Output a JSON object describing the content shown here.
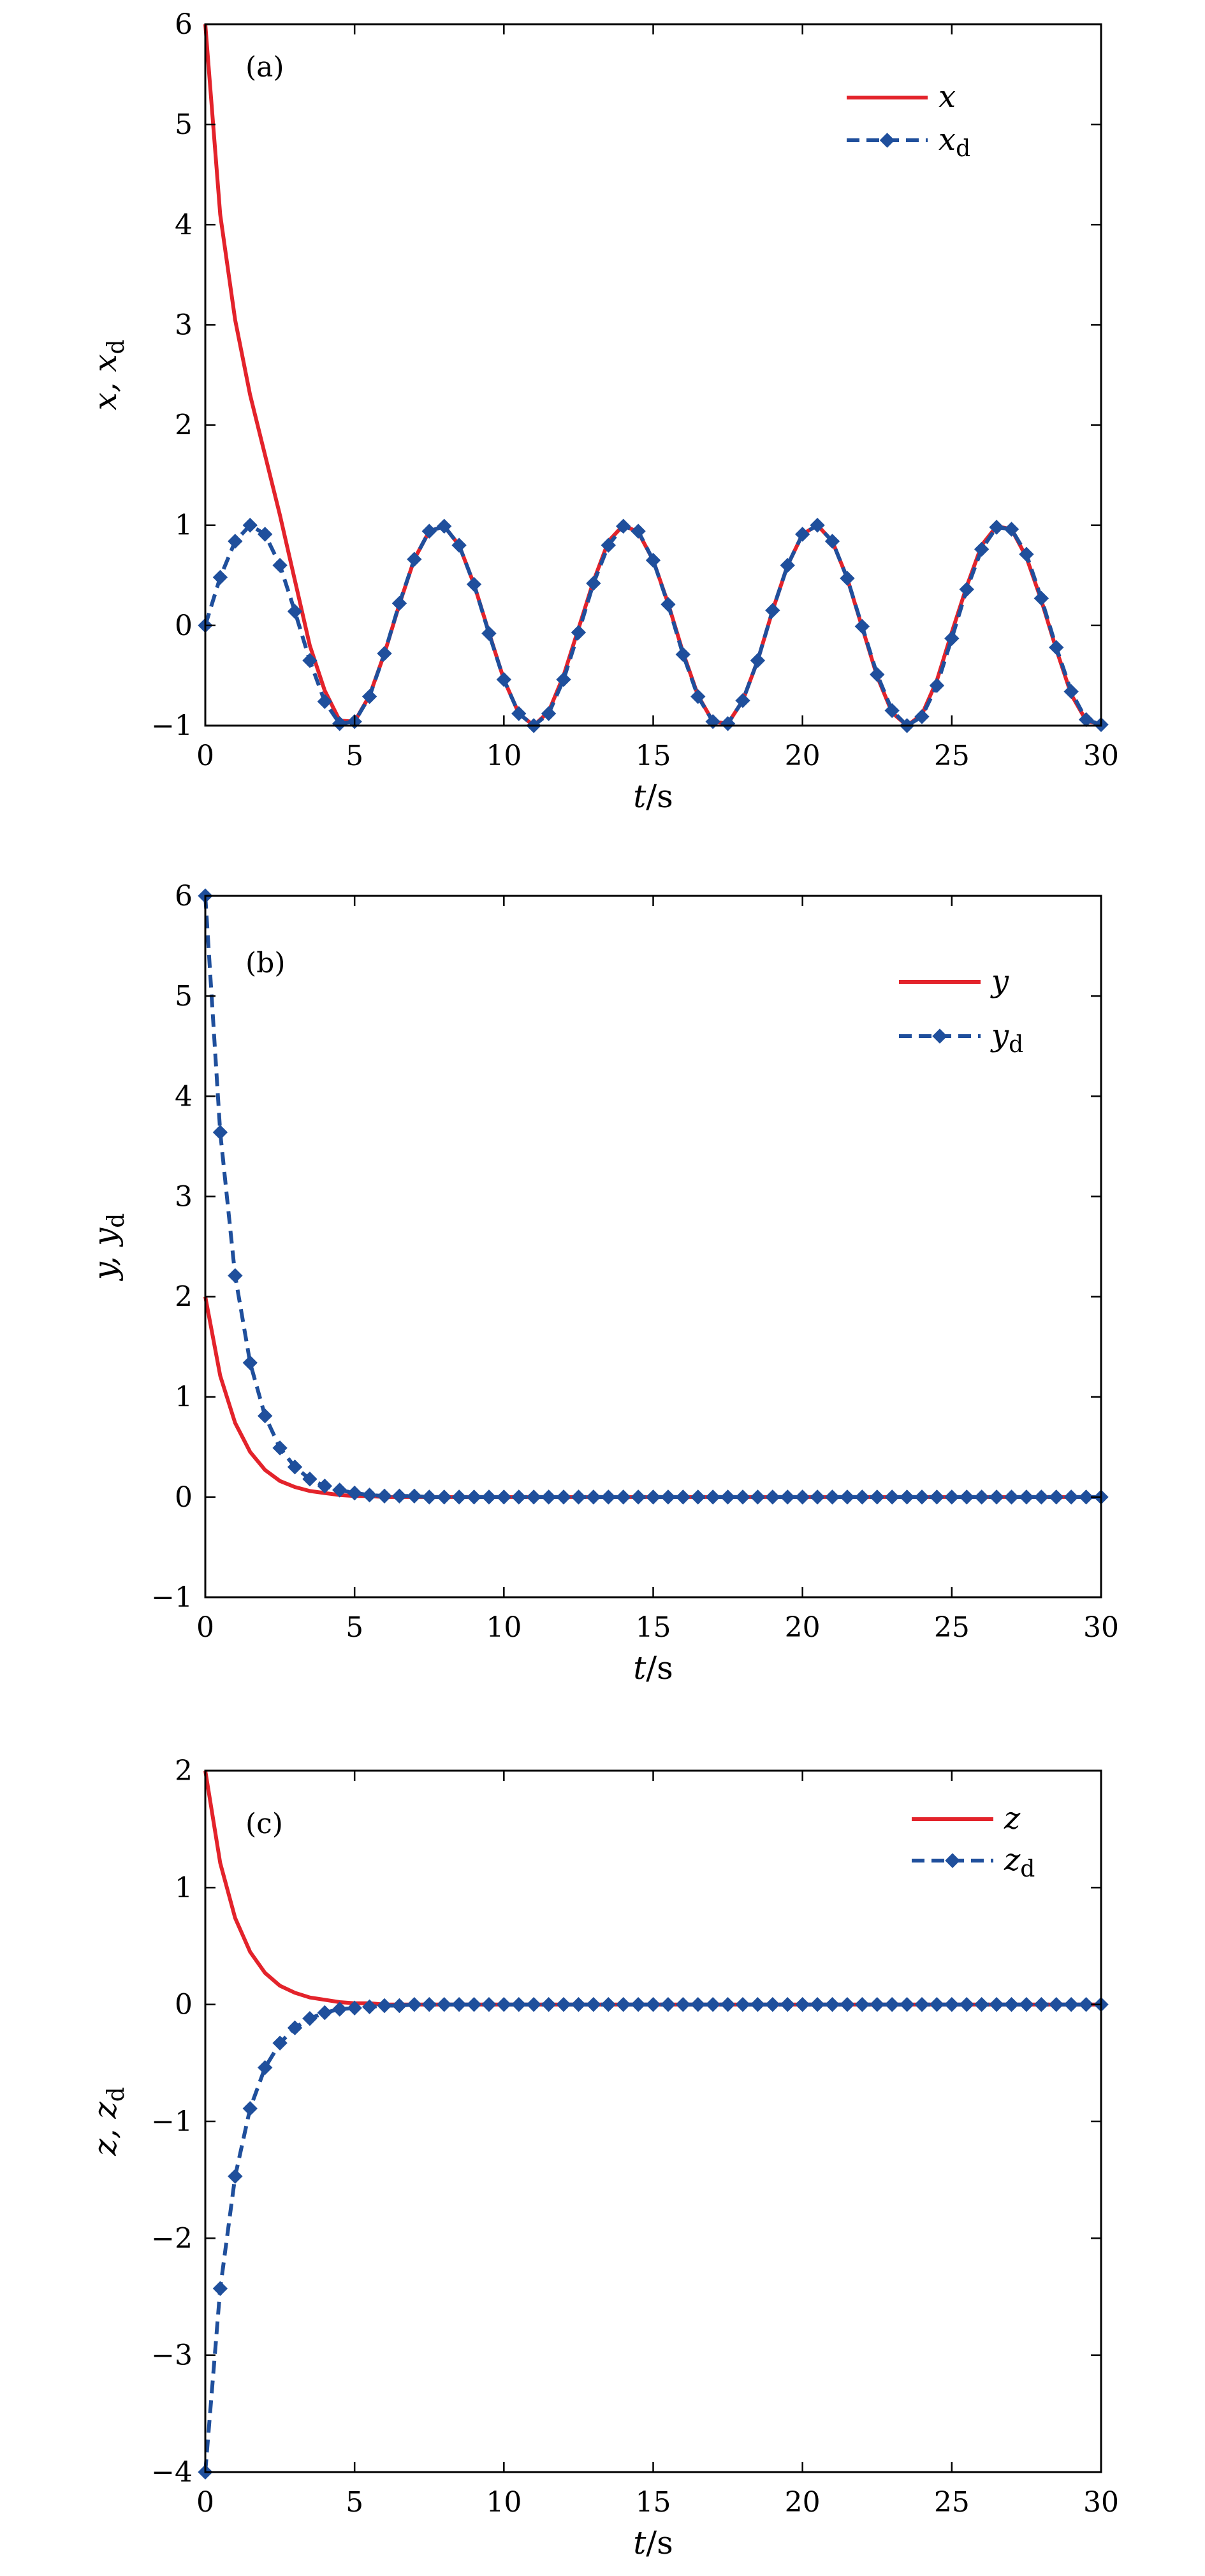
{
  "chart_data": [
    {
      "type": "line",
      "panel_label": "(a)",
      "xlabel": "t/s",
      "ylabel": "x, x",
      "ylabel_sub": "d",
      "xlim": [
        0,
        30
      ],
      "ylim": [
        -1,
        6
      ],
      "xticks": [
        0,
        5,
        10,
        15,
        20,
        25,
        30
      ],
      "yticks": [
        -1,
        0,
        1,
        2,
        3,
        4,
        5,
        6
      ],
      "xtick_labels": [
        "0",
        "5",
        "10",
        "15",
        "20",
        "25",
        "30"
      ],
      "ytick_labels": [
        "−1",
        "0",
        "1",
        "2",
        "3",
        "4",
        "5",
        "6"
      ],
      "legend_position": "top-right",
      "series": [
        {
          "name": "x",
          "name_sub": "",
          "style": "solid",
          "color": "#e3232b",
          "markers": false,
          "x": [
            0,
            0.5,
            1,
            1.5,
            2,
            2.5,
            3,
            3.5,
            4,
            4.5,
            5,
            5.5,
            6,
            6.5,
            7,
            7.5,
            8,
            8.5,
            9,
            9.5,
            10,
            10.5,
            11,
            11.5,
            12,
            12.5,
            13,
            13.5,
            14,
            14.5,
            15,
            15.5,
            16,
            16.5,
            17,
            17.5,
            18,
            18.5,
            19,
            19.5,
            20,
            20.5,
            21,
            21.5,
            22,
            22.5,
            23,
            23.5,
            24,
            24.5,
            25,
            25.5,
            26,
            26.5,
            27,
            27.5,
            28,
            28.5,
            29,
            29.5,
            30
          ],
          "y": [
            6,
            4.1,
            3.05,
            2.3,
            1.7,
            1.1,
            0.45,
            -0.2,
            -0.65,
            -0.95,
            -0.96,
            -0.7,
            -0.28,
            0.21,
            0.66,
            0.94,
            0.99,
            0.8,
            0.41,
            -0.07,
            -0.54,
            -0.88,
            -1,
            -0.86,
            -0.5,
            -0.03,
            0.44,
            0.84,
            1,
            0.93,
            0.65,
            0.22,
            -0.27,
            -0.7,
            -0.96,
            -0.98,
            -0.75,
            -0.35,
            0.15,
            0.6,
            0.91,
            1,
            0.84,
            0.47,
            -0.02,
            -0.51,
            -0.87,
            -1,
            -0.89,
            -0.55,
            -0.07,
            0.39,
            0.8,
            0.99,
            0.96,
            0.68,
            0.25,
            -0.24,
            -0.69,
            -0.95,
            -0.99
          ]
        },
        {
          "name": "x",
          "name_sub": "d",
          "style": "dashed",
          "color": "#1f4f9c",
          "markers": true,
          "x": [
            0,
            0.5,
            1,
            1.5,
            2,
            2.5,
            3,
            3.5,
            4,
            4.5,
            5,
            5.5,
            6,
            6.5,
            7,
            7.5,
            8,
            8.5,
            9,
            9.5,
            10,
            10.5,
            11,
            11.5,
            12,
            12.5,
            13,
            13.5,
            14,
            14.5,
            15,
            15.5,
            16,
            16.5,
            17,
            17.5,
            18,
            18.5,
            19,
            19.5,
            20,
            20.5,
            21,
            21.5,
            22,
            22.5,
            23,
            23.5,
            24,
            24.5,
            25,
            25.5,
            26,
            26.5,
            27,
            27.5,
            28,
            28.5,
            29,
            29.5,
            30
          ],
          "y": [
            0,
            0.48,
            0.84,
            1,
            0.91,
            0.6,
            0.14,
            -0.35,
            -0.76,
            -0.98,
            -0.96,
            -0.71,
            -0.28,
            0.22,
            0.66,
            0.94,
            0.99,
            0.8,
            0.41,
            -0.08,
            -0.54,
            -0.88,
            -1,
            -0.88,
            -0.54,
            -0.07,
            0.42,
            0.8,
            0.99,
            0.94,
            0.65,
            0.21,
            -0.29,
            -0.71,
            -0.96,
            -0.98,
            -0.75,
            -0.35,
            0.15,
            0.6,
            0.91,
            1,
            0.84,
            0.47,
            -0.01,
            -0.49,
            -0.85,
            -1,
            -0.91,
            -0.6,
            -0.13,
            0.36,
            0.76,
            0.98,
            0.96,
            0.71,
            0.27,
            -0.22,
            -0.66,
            -0.94,
            -0.99
          ]
        }
      ]
    },
    {
      "type": "line",
      "panel_label": "(b)",
      "xlabel": "t/s",
      "ylabel": "y, y",
      "ylabel_sub": "d",
      "xlim": [
        0,
        30
      ],
      "ylim": [
        -1,
        6
      ],
      "xticks": [
        0,
        5,
        10,
        15,
        20,
        25,
        30
      ],
      "yticks": [
        -1,
        0,
        1,
        2,
        3,
        4,
        5,
        6
      ],
      "xtick_labels": [
        "0",
        "5",
        "10",
        "15",
        "20",
        "25",
        "30"
      ],
      "ytick_labels": [
        "−1",
        "0",
        "1",
        "2",
        "3",
        "4",
        "5",
        "6"
      ],
      "legend_position": "top-right",
      "series": [
        {
          "name": "y",
          "name_sub": "",
          "style": "solid",
          "color": "#e3232b",
          "markers": false,
          "x": [
            0,
            0.5,
            1,
            1.5,
            2,
            2.5,
            3,
            3.5,
            4,
            4.5,
            5,
            5.5,
            6,
            7,
            8,
            10,
            15,
            20,
            25,
            30
          ],
          "y": [
            2,
            1.21,
            0.74,
            0.45,
            0.27,
            0.16,
            0.1,
            0.06,
            0.04,
            0.02,
            0.01,
            0.01,
            0,
            0,
            0,
            0,
            0,
            0,
            0,
            0
          ]
        },
        {
          "name": "y",
          "name_sub": "d",
          "style": "dashed",
          "color": "#1f4f9c",
          "markers": true,
          "x": [
            0,
            0.5,
            1,
            1.5,
            2,
            2.5,
            3,
            3.5,
            4,
            4.5,
            5,
            5.5,
            6,
            6.5,
            7,
            7.5,
            8,
            8.5,
            9,
            9.5,
            10,
            10.5,
            11,
            11.5,
            12,
            12.5,
            13,
            13.5,
            14,
            14.5,
            15,
            15.5,
            16,
            16.5,
            17,
            17.5,
            18,
            18.5,
            19,
            19.5,
            20,
            20.5,
            21,
            21.5,
            22,
            22.5,
            23,
            23.5,
            24,
            24.5,
            25,
            25.5,
            26,
            26.5,
            27,
            27.5,
            28,
            28.5,
            29,
            29.5,
            30
          ],
          "y": [
            6,
            3.64,
            2.21,
            1.34,
            0.81,
            0.49,
            0.3,
            0.18,
            0.11,
            0.07,
            0.04,
            0.02,
            0.01,
            0.01,
            0.01,
            0,
            0,
            0,
            0,
            0,
            0,
            0,
            0,
            0,
            0,
            0,
            0,
            0,
            0,
            0,
            0,
            0,
            0,
            0,
            0,
            0,
            0,
            0,
            0,
            0,
            0,
            0,
            0,
            0,
            0,
            0,
            0,
            0,
            0,
            0,
            0,
            0,
            0,
            0,
            0,
            0,
            0,
            0,
            0,
            0,
            0
          ]
        }
      ]
    },
    {
      "type": "line",
      "panel_label": "(c)",
      "xlabel": "t/s",
      "ylabel": "z, z",
      "ylabel_sub": "d",
      "xlim": [
        0,
        30
      ],
      "ylim": [
        -4,
        2
      ],
      "xticks": [
        0,
        5,
        10,
        15,
        20,
        25,
        30
      ],
      "yticks": [
        -4,
        -3,
        -2,
        -1,
        0,
        1,
        2
      ],
      "xtick_labels": [
        "0",
        "5",
        "10",
        "15",
        "20",
        "25",
        "30"
      ],
      "ytick_labels": [
        "−4",
        "−3",
        "−2",
        "−1",
        "0",
        "1",
        "2"
      ],
      "legend_position": "top-right",
      "series": [
        {
          "name": "z",
          "name_sub": "",
          "style": "solid",
          "color": "#e3232b",
          "markers": false,
          "x": [
            0,
            0.5,
            1,
            1.5,
            2,
            2.5,
            3,
            3.5,
            4,
            4.5,
            5,
            5.5,
            6,
            7,
            8,
            10,
            15,
            20,
            25,
            30
          ],
          "y": [
            2,
            1.21,
            0.74,
            0.45,
            0.27,
            0.16,
            0.1,
            0.06,
            0.04,
            0.02,
            0.01,
            0.01,
            0,
            0,
            0,
            0,
            0,
            0,
            0,
            0
          ]
        },
        {
          "name": "z",
          "name_sub": "d",
          "style": "dashed",
          "color": "#1f4f9c",
          "markers": true,
          "x": [
            0,
            0.5,
            1,
            1.5,
            2,
            2.5,
            3,
            3.5,
            4,
            4.5,
            5,
            5.5,
            6,
            6.5,
            7,
            7.5,
            8,
            8.5,
            9,
            9.5,
            10,
            10.5,
            11,
            11.5,
            12,
            12.5,
            13,
            13.5,
            14,
            14.5,
            15,
            15.5,
            16,
            16.5,
            17,
            17.5,
            18,
            18.5,
            19,
            19.5,
            20,
            20.5,
            21,
            21.5,
            22,
            22.5,
            23,
            23.5,
            24,
            24.5,
            25,
            25.5,
            26,
            26.5,
            27,
            27.5,
            28,
            28.5,
            29,
            29.5,
            30
          ],
          "y": [
            -4,
            -2.43,
            -1.47,
            -0.89,
            -0.54,
            -0.33,
            -0.2,
            -0.12,
            -0.07,
            -0.04,
            -0.03,
            -0.02,
            -0.01,
            -0.01,
            0,
            0,
            0,
            0,
            0,
            0,
            0,
            0,
            0,
            0,
            0,
            0,
            0,
            0,
            0,
            0,
            0,
            0,
            0,
            0,
            0,
            0,
            0,
            0,
            0,
            0,
            0,
            0,
            0,
            0,
            0,
            0,
            0,
            0,
            0,
            0,
            0,
            0,
            0,
            0,
            0,
            0,
            0,
            0,
            0,
            0,
            0
          ]
        }
      ]
    }
  ]
}
